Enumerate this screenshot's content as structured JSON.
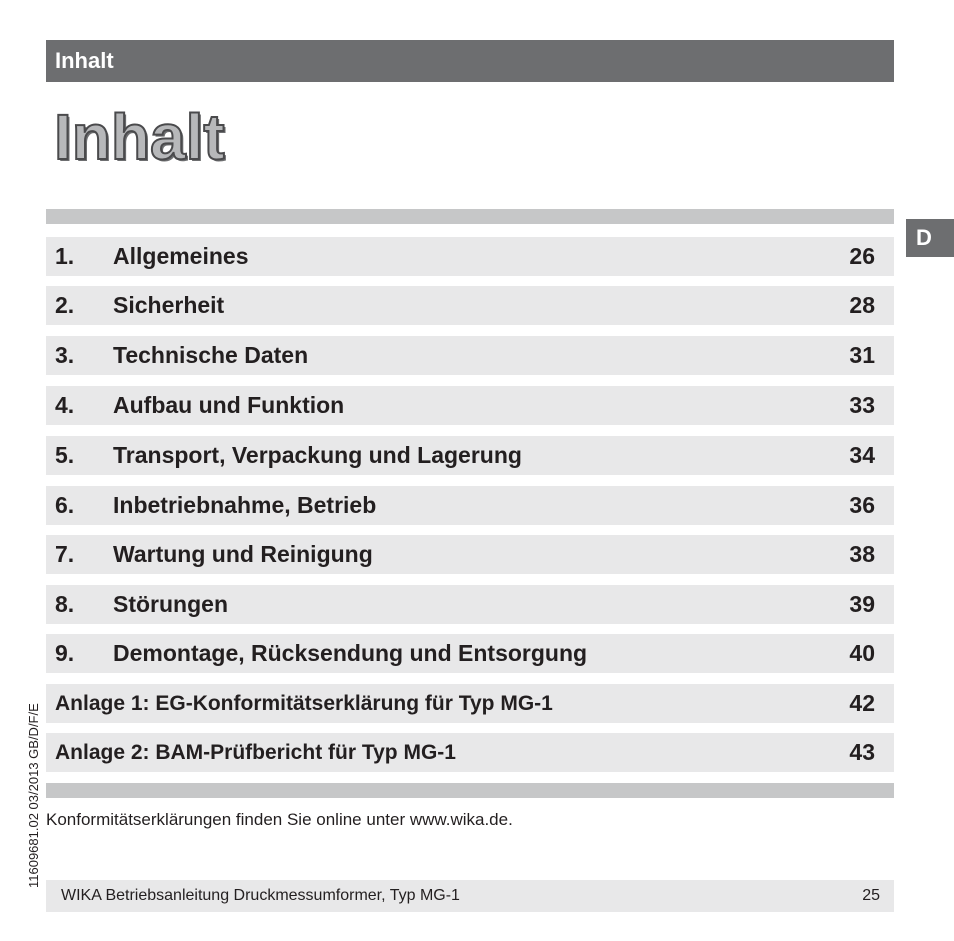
{
  "header": {
    "label": "Inhalt"
  },
  "page_title": "Inhalt",
  "language_tab": "D",
  "toc": [
    {
      "num": "1.",
      "title": "Allgemeines",
      "page": "26"
    },
    {
      "num": "2.",
      "title": "Sicherheit",
      "page": "28"
    },
    {
      "num": "3.",
      "title": "Technische Daten",
      "page": "31"
    },
    {
      "num": "4.",
      "title": "Aufbau und Funktion",
      "page": "33"
    },
    {
      "num": "5.",
      "title": "Transport, Verpackung und Lagerung",
      "page": "34"
    },
    {
      "num": "6.",
      "title": "Inbetriebnahme, Betrieb",
      "page": "36"
    },
    {
      "num": "7.",
      "title": "Wartung und Reinigung",
      "page": "38"
    },
    {
      "num": "8.",
      "title": "Störungen",
      "page": "39"
    },
    {
      "num": "9.",
      "title": "Demontage, Rücksendung und Entsorgung",
      "page": "40"
    }
  ],
  "annexes": [
    {
      "title": "Anlage 1: EG-Konformitätserklärung für Typ MG-1",
      "page": "42"
    },
    {
      "title": "Anlage 2: BAM-Prüfbericht für Typ MG-1",
      "page": "43"
    }
  ],
  "note": "Konformitätserklärungen finden Sie online unter www.wika.de.",
  "side_code": "11609681.02 03/2013 GB/D/F/E",
  "footer": {
    "text": "WIKA Betriebsanleitung Druckmessumformer, Typ MG-1",
    "page": "25"
  }
}
